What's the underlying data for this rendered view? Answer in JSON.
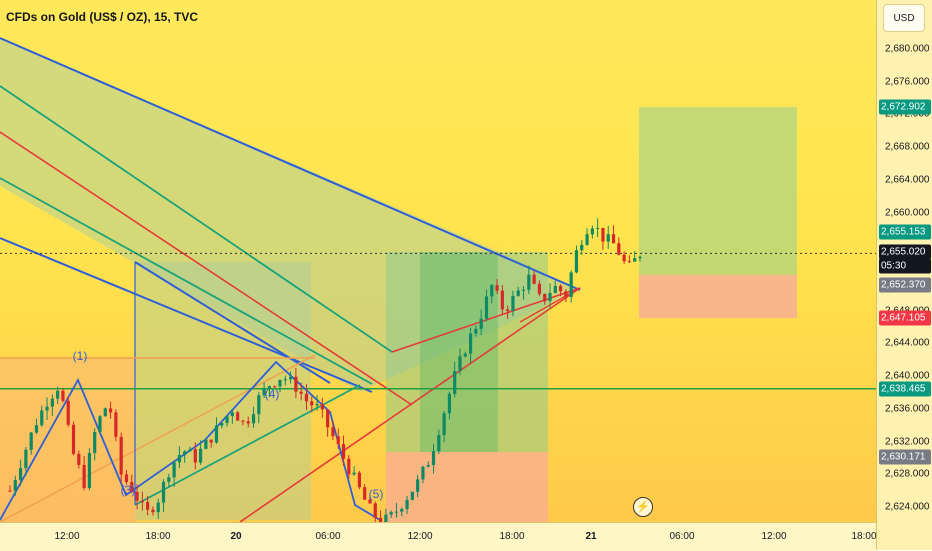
{
  "title": "CFDs on Gold (US$ / OZ), 15, TVC",
  "currency": "USD",
  "price_axis": {
    "ticks": [
      "2,680.000",
      "2,676.000",
      "2,672.000",
      "2,668.000",
      "2,664.000",
      "2,660.000",
      "2,648.000",
      "2,644.000",
      "2,640.000",
      "2,636.000",
      "2,632.000",
      "2,628.000",
      "2,624.000"
    ],
    "tick_values": [
      2680,
      2676,
      2672,
      2668,
      2664,
      2660,
      2648,
      2644,
      2640,
      2636,
      2632,
      2628,
      2624
    ]
  },
  "time_axis": {
    "ticks": [
      "12:00",
      "18:00",
      "20",
      "06:00",
      "12:00",
      "18:00",
      "21",
      "06:00",
      "12:00",
      "18:00"
    ],
    "day_markers": [
      "20",
      "21"
    ]
  },
  "price_labels": [
    {
      "text": "2,672.902",
      "value": 2672.902,
      "color": "#089981"
    },
    {
      "text": "2,655.153",
      "value": 2655.153,
      "color": "#089981"
    },
    {
      "text": "2,655.020",
      "value": 2655.02,
      "color": "#131722"
    },
    {
      "text": "05:30",
      "value": 2653.6,
      "color": "#131722"
    },
    {
      "text": "2,652.370",
      "value": 2652.37,
      "color": "#787b86"
    },
    {
      "text": "2,647.105",
      "value": 2647.105,
      "color": "#f23645"
    },
    {
      "text": "2,638.465",
      "value": 2638.465,
      "color": "#089981"
    },
    {
      "text": "2,630.171",
      "value": 2630.171,
      "color": "#787b86"
    }
  ],
  "wave_labels": [
    "(1)",
    "(3)",
    "(4)",
    "(5)"
  ],
  "flash_icon": "lightning-icon",
  "chart_data": {
    "type": "candlestick",
    "title": "CFDs on Gold (US$ / OZ), 15, TVC",
    "ylim": [
      2621.5,
      2682.5
    ],
    "horizontal_levels": [
      2641.2,
      2638.465,
      2655.02
    ],
    "long_position_box": {
      "target": 2672.902,
      "entry": 2652.37,
      "stop": 2647.105
    },
    "close_path": [
      2626,
      2630,
      2634,
      2637,
      2639,
      2631,
      2627,
      2634,
      2637,
      2628,
      2626,
      2623,
      2625,
      2629,
      2631,
      2630,
      2632,
      2634,
      2636,
      2634,
      2637,
      2639,
      2640,
      2639,
      2637,
      2636,
      2633,
      2630,
      2627,
      2624,
      2622,
      2623,
      2625,
      2627,
      2630,
      2635,
      2640,
      2644,
      2647,
      2651,
      2648,
      2650,
      2652,
      2649,
      2651,
      2650,
      2656,
      2659,
      2657,
      2656,
      2653,
      2655
    ]
  }
}
